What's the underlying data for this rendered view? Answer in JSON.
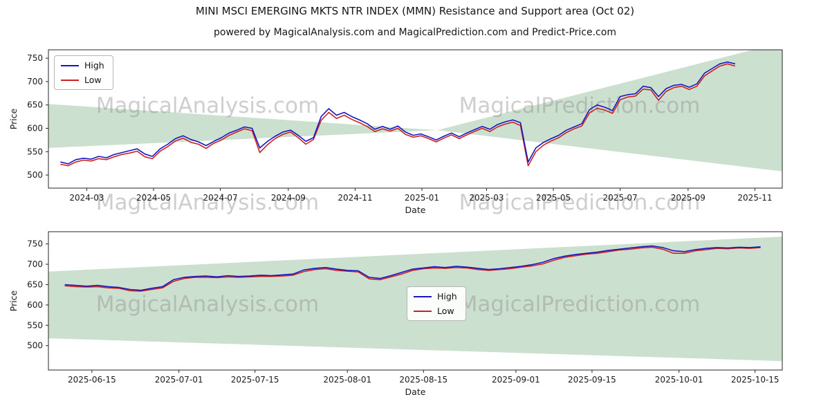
{
  "figure": {
    "title": "MINI MSCI EMERGING MKTS NTR INDEX (MMN) Resistance and Support area (Oct 02)",
    "subtitle": "powered by MagicalAnalysis.com and MagicalPrediction.com and Predict-Price.com"
  },
  "watermarks": {
    "left": "MagicalAnalysis.com",
    "right": "MagicalPrediction.com"
  },
  "legend": {
    "high_label": "High",
    "low_label": "Low"
  },
  "colors": {
    "high_line": "#1515c3",
    "low_line": "#cc2020",
    "band_fill": "rgba(100,160,110,0.33)",
    "watermark": "#8c8c8c",
    "frame": "#262626",
    "tick_text": "#1a1a1a"
  },
  "chart_data": [
    {
      "type": "line",
      "xlabel": "Date",
      "ylabel": "Price",
      "x_unit": "days since 2024-01-01",
      "xlim": [
        25,
        695
      ],
      "ylim": [
        472,
        768
      ],
      "yticks": [
        500,
        550,
        600,
        650,
        700,
        750
      ],
      "xticks": [
        {
          "x": 60,
          "label": "2024-03"
        },
        {
          "x": 121,
          "label": "2024-05"
        },
        {
          "x": 182,
          "label": "2024-07"
        },
        {
          "x": 244,
          "label": "2024-09"
        },
        {
          "x": 305,
          "label": "2024-11"
        },
        {
          "x": 366,
          "label": "2025-01"
        },
        {
          "x": 425,
          "label": "2025-03"
        },
        {
          "x": 486,
          "label": "2025-05"
        },
        {
          "x": 547,
          "label": "2025-07"
        },
        {
          "x": 609,
          "label": "2025-09"
        },
        {
          "x": 670,
          "label": "2025-11"
        }
      ],
      "series": [
        {
          "name": "High",
          "x_start": 36,
          "x_step": 7,
          "values": [
            528,
            524,
            533,
            536,
            534,
            540,
            537,
            544,
            548,
            552,
            556,
            545,
            540,
            556,
            566,
            578,
            584,
            576,
            571,
            563,
            572,
            580,
            590,
            596,
            603,
            600,
            558,
            572,
            583,
            592,
            596,
            585,
            572,
            580,
            625,
            642,
            628,
            634,
            625,
            618,
            610,
            598,
            604,
            598,
            605,
            592,
            585,
            588,
            582,
            575,
            583,
            590,
            582,
            590,
            597,
            604,
            598,
            608,
            614,
            618,
            612,
            528,
            558,
            570,
            578,
            585,
            596,
            603,
            610,
            640,
            650,
            645,
            638,
            668,
            672,
            674,
            690,
            687,
            668,
            685,
            692,
            694,
            688,
            695,
            718,
            728,
            738,
            742,
            738
          ]
        },
        {
          "name": "Low",
          "x_start": 36,
          "x_step": 7,
          "values": [
            523,
            520,
            528,
            532,
            530,
            535,
            533,
            539,
            544,
            547,
            551,
            539,
            535,
            551,
            561,
            573,
            579,
            570,
            566,
            557,
            568,
            575,
            585,
            592,
            599,
            595,
            548,
            565,
            578,
            587,
            592,
            580,
            566,
            576,
            617,
            634,
            621,
            628,
            619,
            612,
            604,
            593,
            599,
            594,
            600,
            587,
            581,
            584,
            578,
            571,
            579,
            586,
            578,
            586,
            593,
            600,
            593,
            603,
            609,
            613,
            606,
            520,
            550,
            564,
            573,
            580,
            591,
            599,
            605,
            633,
            643,
            639,
            632,
            661,
            667,
            669,
            684,
            682,
            660,
            679,
            687,
            690,
            683,
            690,
            712,
            723,
            733,
            738,
            733
          ]
        }
      ],
      "area_polygons": [
        [
          [
            25,
            652
          ],
          [
            380,
            596
          ],
          [
            25,
            558
          ]
        ],
        [
          [
            380,
            596
          ],
          [
            695,
            784
          ],
          [
            695,
            508
          ]
        ]
      ]
    },
    {
      "type": "line",
      "xlabel": "Date",
      "ylabel": "Price",
      "x_unit": "days since 2025-06-01",
      "xlim": [
        6,
        141
      ],
      "ylim": [
        440,
        780
      ],
      "yticks": [
        500,
        550,
        600,
        650,
        700,
        750
      ],
      "xticks": [
        {
          "x": 14,
          "label": "2025-06-15"
        },
        {
          "x": 30,
          "label": "2025-07-01"
        },
        {
          "x": 44,
          "label": "2025-07-15"
        },
        {
          "x": 61,
          "label": "2025-08-01"
        },
        {
          "x": 75,
          "label": "2025-08-15"
        },
        {
          "x": 92,
          "label": "2025-09-01"
        },
        {
          "x": 106,
          "label": "2025-09-15"
        },
        {
          "x": 122,
          "label": "2025-10-01"
        },
        {
          "x": 136,
          "label": "2025-10-15"
        }
      ],
      "series": [
        {
          "name": "High",
          "x_start": 9,
          "x_step": 2,
          "values": [
            650,
            648,
            646,
            648,
            645,
            643,
            638,
            636,
            641,
            645,
            662,
            668,
            670,
            671,
            669,
            672,
            670,
            671,
            673,
            672,
            674,
            676,
            686,
            690,
            692,
            688,
            685,
            684,
            668,
            665,
            672,
            680,
            688,
            691,
            694,
            692,
            695,
            693,
            690,
            687,
            689,
            692,
            695,
            699,
            705,
            714,
            720,
            724,
            727,
            730,
            734,
            737,
            740,
            743,
            745,
            741,
            733,
            731,
            736,
            739,
            741,
            740,
            742,
            741,
            743
          ]
        },
        {
          "name": "Low",
          "x_start": 9,
          "x_step": 2,
          "values": [
            647,
            645,
            644,
            645,
            642,
            641,
            635,
            634,
            638,
            642,
            658,
            665,
            668,
            668,
            667,
            669,
            668,
            669,
            670,
            670,
            671,
            673,
            682,
            687,
            689,
            685,
            683,
            681,
            664,
            662,
            669,
            676,
            685,
            689,
            691,
            690,
            692,
            691,
            687,
            685,
            687,
            689,
            693,
            696,
            701,
            710,
            717,
            721,
            725,
            727,
            731,
            735,
            737,
            740,
            742,
            737,
            727,
            727,
            733,
            736,
            739,
            738,
            740,
            739,
            741
          ]
        }
      ],
      "area_polygons": [
        [
          [
            6,
            682
          ],
          [
            141,
            768
          ],
          [
            141,
            462
          ],
          [
            6,
            518
          ]
        ]
      ]
    }
  ]
}
